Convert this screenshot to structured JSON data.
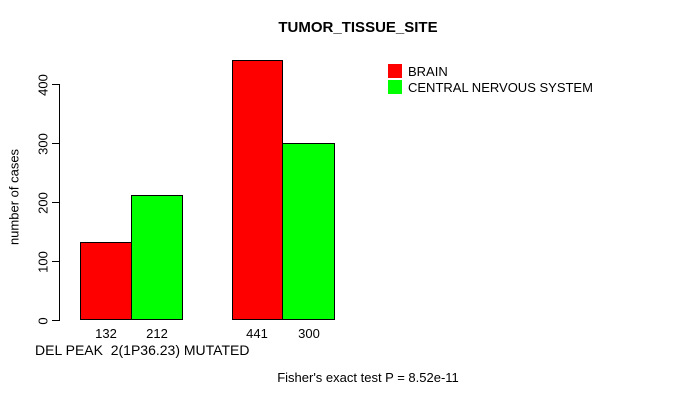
{
  "title": "TUMOR_TISSUE_SITE",
  "annotations": {
    "x_axis_note": "DEL PEAK  2(1P36.23) MUTATED",
    "footnote": "Fisher's exact test P = 8.52e-11"
  },
  "colors": {
    "background": "#ffffff",
    "text": "#000000",
    "axis": "#000000",
    "bar_border": "#000000",
    "brain": "#ff0000",
    "central_nervous_system": "#00ff00"
  },
  "chart_data": {
    "type": "bar",
    "title": "TUMOR_TISSUE_SITE",
    "ylabel": "number of cases",
    "xlabel": "",
    "categories": [
      "",
      ""
    ],
    "series": [
      {
        "name": "BRAIN",
        "color": "#ff0000",
        "values": [
          132,
          441
        ]
      },
      {
        "name": "CENTRAL NERVOUS SYSTEM",
        "color": "#00ff00",
        "values": [
          212,
          300
        ]
      }
    ],
    "bar_value_labels": [
      [
        "132",
        "441"
      ],
      [
        "212",
        "300"
      ]
    ],
    "yticks": [
      0,
      100,
      200,
      300,
      400
    ],
    "ylim": [
      0,
      445
    ],
    "grid": false,
    "legend_position": "top-right"
  }
}
